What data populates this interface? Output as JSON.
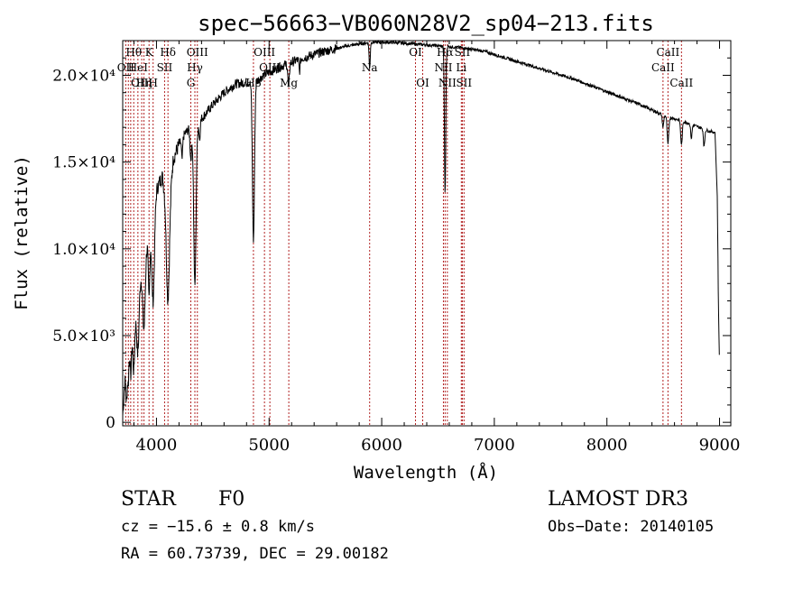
{
  "chart_data": {
    "type": "line",
    "title": "spec−56663−VB060N28V2_sp04−213.fits",
    "xlabel": "Wavelength (Å)",
    "ylabel": "Flux (relative)",
    "xlim": [
      3700,
      9100
    ],
    "ylim": [
      -200,
      22000
    ],
    "xticks": [
      {
        "value": 4000,
        "label": "4000"
      },
      {
        "value": 5000,
        "label": "5000"
      },
      {
        "value": 6000,
        "label": "6000"
      },
      {
        "value": 7000,
        "label": "7000"
      },
      {
        "value": 8000,
        "label": "8000"
      },
      {
        "value": 9000,
        "label": "9000"
      }
    ],
    "yticks": [
      {
        "value": 0,
        "label": "0"
      },
      {
        "value": 5000,
        "label": "5.0×10³"
      },
      {
        "value": 10000,
        "label": "1.0×10⁴"
      },
      {
        "value": 15000,
        "label": "1.5×10⁴"
      },
      {
        "value": 20000,
        "label": "2.0×10⁴"
      }
    ],
    "continuum": [
      [
        3700,
        400
      ],
      [
        3720,
        2500
      ],
      [
        3760,
        5000
      ],
      [
        3800,
        5600
      ],
      [
        3850,
        8000
      ],
      [
        3900,
        9800
      ],
      [
        3950,
        11500
      ],
      [
        4000,
        13400
      ],
      [
        4050,
        14200
      ],
      [
        4100,
        12500
      ],
      [
        4150,
        15200
      ],
      [
        4200,
        16000
      ],
      [
        4250,
        16600
      ],
      [
        4300,
        17000
      ],
      [
        4340,
        16800
      ],
      [
        4400,
        17500
      ],
      [
        4500,
        18300
      ],
      [
        4600,
        19000
      ],
      [
        4700,
        19500
      ],
      [
        4800,
        19600
      ],
      [
        4861,
        19500
      ],
      [
        4950,
        20000
      ],
      [
        5100,
        20500
      ],
      [
        5300,
        21000
      ],
      [
        5500,
        21400
      ],
      [
        5700,
        21700
      ],
      [
        5900,
        21900
      ],
      [
        6100,
        21900
      ],
      [
        6300,
        21800
      ],
      [
        6500,
        21700
      ],
      [
        6700,
        21600
      ],
      [
        6900,
        21400
      ],
      [
        7100,
        21000
      ],
      [
        7300,
        20600
      ],
      [
        7500,
        20200
      ],
      [
        7700,
        19800
      ],
      [
        7900,
        19300
      ],
      [
        8100,
        18800
      ],
      [
        8300,
        18300
      ],
      [
        8500,
        17700
      ],
      [
        8700,
        17300
      ],
      [
        8900,
        16800
      ],
      [
        8960,
        16700
      ],
      [
        8980,
        13000
      ],
      [
        8990,
        7000
      ],
      [
        9000,
        3000
      ]
    ],
    "absorption": [
      {
        "x": 3734,
        "depth": 2200,
        "width": 6
      },
      {
        "x": 3750,
        "depth": 2000,
        "width": 6
      },
      {
        "x": 3771,
        "depth": 2400,
        "width": 7
      },
      {
        "x": 3798,
        "depth": 2600,
        "width": 8
      },
      {
        "x": 3835,
        "depth": 3300,
        "width": 10
      },
      {
        "x": 3889,
        "depth": 4000,
        "width": 11
      },
      {
        "x": 3934,
        "depth": 3800,
        "width": 7
      },
      {
        "x": 3970,
        "depth": 5200,
        "width": 12
      },
      {
        "x": 4102,
        "depth": 5500,
        "width": 14
      },
      {
        "x": 4227,
        "depth": 1200,
        "width": 5
      },
      {
        "x": 4305,
        "depth": 1800,
        "width": 7
      },
      {
        "x": 4341,
        "depth": 9000,
        "width": 10
      },
      {
        "x": 4383,
        "depth": 1000,
        "width": 5
      },
      {
        "x": 4861,
        "depth": 9000,
        "width": 9
      },
      {
        "x": 5173,
        "depth": 1500,
        "width": 6
      },
      {
        "x": 5270,
        "depth": 700,
        "width": 5
      },
      {
        "x": 5893,
        "depth": 1500,
        "width": 5
      },
      {
        "x": 6563,
        "depth": 8500,
        "width": 6
      },
      {
        "x": 8498,
        "depth": 700,
        "width": 6
      },
      {
        "x": 8542,
        "depth": 1600,
        "width": 7
      },
      {
        "x": 8662,
        "depth": 1400,
        "width": 7
      },
      {
        "x": 8750,
        "depth": 800,
        "width": 6
      },
      {
        "x": 8863,
        "depth": 1000,
        "width": 6
      }
    ],
    "lines": [
      {
        "wave": 3727,
        "label": "OII",
        "row": 1
      },
      {
        "wave": 3750,
        "label": "",
        "row": 0
      },
      {
        "wave": 3771,
        "label": "",
        "row": 0
      },
      {
        "wave": 3798,
        "label": "Hθ",
        "row": 0
      },
      {
        "wave": 3835,
        "label": "HeI",
        "row": 1
      },
      {
        "wave": 3869,
        "label": "OIII",
        "row": 2
      },
      {
        "wave": 3889,
        "label": "Hη",
        "row": 2
      },
      {
        "wave": 3934,
        "label": "K",
        "row": 0
      },
      {
        "wave": 3970,
        "label": "H",
        "row": 2
      },
      {
        "wave": 4072,
        "label": "SII",
        "row": 1
      },
      {
        "wave": 4102,
        "label": "Hδ",
        "row": 0
      },
      {
        "wave": 4305,
        "label": "G",
        "row": 2
      },
      {
        "wave": 4341,
        "label": "Hγ",
        "row": 1
      },
      {
        "wave": 4363,
        "label": "OIII",
        "row": 0
      },
      {
        "wave": 4861,
        "label": "Hβ",
        "row": 2
      },
      {
        "wave": 4959,
        "label": "OIII",
        "row": 0
      },
      {
        "wave": 5007,
        "label": "OIII",
        "row": 1
      },
      {
        "wave": 5175,
        "label": "Mg",
        "row": 2
      },
      {
        "wave": 5893,
        "label": "Na",
        "row": 1
      },
      {
        "wave": 6300,
        "label": "OI",
        "row": 0
      },
      {
        "wave": 6364,
        "label": "OI",
        "row": 2
      },
      {
        "wave": 6548,
        "label": "NII",
        "row": 1
      },
      {
        "wave": 6563,
        "label": "Hα",
        "row": 0
      },
      {
        "wave": 6583,
        "label": "NII",
        "row": 2
      },
      {
        "wave": 6707,
        "label": "Li",
        "row": 1
      },
      {
        "wave": 6716,
        "label": "SII",
        "row": 0
      },
      {
        "wave": 6731,
        "label": "SII",
        "row": 2
      },
      {
        "wave": 8498,
        "label": "CaII",
        "row": 1
      },
      {
        "wave": 8542,
        "label": "CaII",
        "row": 0
      },
      {
        "wave": 8662,
        "label": "CaII",
        "row": 2
      }
    ]
  },
  "footer": {
    "object_type": "STAR",
    "subclass": "F0",
    "cz": "cz = −15.6 ± 0.8 km/s",
    "coords": "RA =  60.73739, DEC =  29.00182",
    "survey": "LAMOST DR3",
    "obs_date": "Obs−Date: 20140105"
  }
}
